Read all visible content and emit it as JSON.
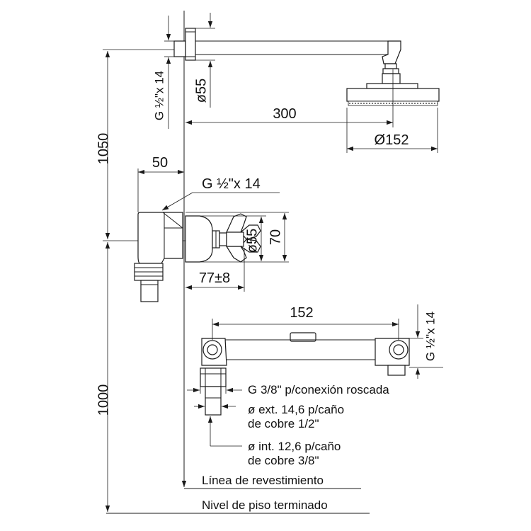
{
  "labels": {
    "top_thread": "G ½\"x 14",
    "top_diameter": "ø55",
    "arm_length": "300",
    "head_diameter": "Ø152",
    "height_upper": "1050",
    "offset": "50",
    "valve_thread": "G ½\"x 14",
    "valve_diameter": "ø55",
    "valve_height": "70",
    "valve_depth": "77±8",
    "bar_length": "152",
    "bar_thread": "G ½\"x 14",
    "height_lower": "1000",
    "note_conexion": "G 3/8\" p/conexión roscada",
    "note_ext_1": "ø ext. 14,6 p/caño",
    "note_ext_2": "de cobre 1/2\"",
    "note_int_1": "ø int. 12,6 p/caño",
    "note_int_2": "de cobre 3/8\"",
    "wall_line": "Línea de revestimiento",
    "floor_line": "Nivel de piso terminado"
  },
  "colors": {
    "ink": "#1a1a1a",
    "background": "#ffffff"
  }
}
